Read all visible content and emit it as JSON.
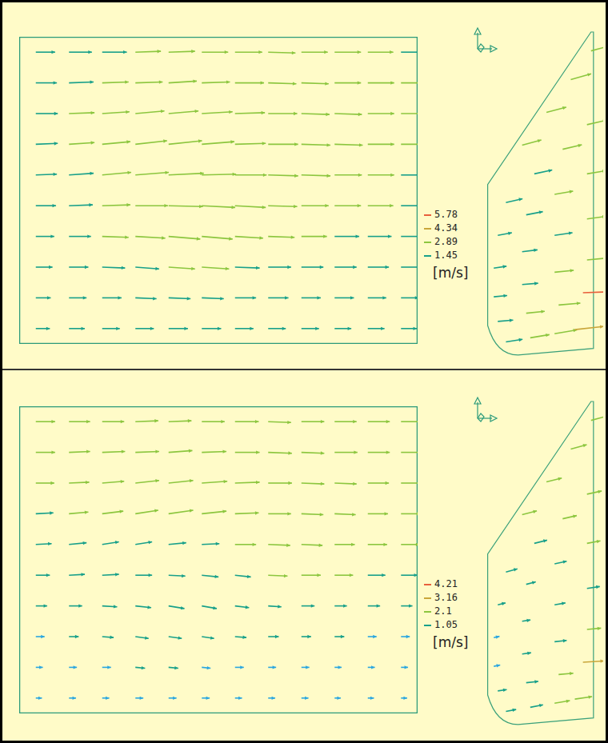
{
  "chart_data": [
    {
      "type": "quiver",
      "tick_labels": false,
      "grid": false,
      "xlim": [
        0,
        12
      ],
      "ylim": [
        0,
        10
      ],
      "grid_x": [
        0.5,
        1.5,
        2.5,
        3.5,
        4.5,
        5.5,
        6.5,
        7.5,
        8.5,
        9.5,
        10.5,
        11.5
      ],
      "grid_y": [
        9.5,
        8.5,
        7.5,
        6.5,
        5.5,
        4.5,
        3.5,
        2.5,
        1.5,
        0.5
      ],
      "u": [
        [
          2.2,
          2.6,
          2.8,
          2.9,
          3.0,
          3.0,
          3.1,
          3.1,
          3.0,
          3.0,
          2.9,
          2.8
        ],
        [
          2.4,
          2.8,
          3.0,
          3.1,
          3.2,
          3.2,
          3.3,
          3.2,
          3.1,
          3.0,
          3.0,
          2.9
        ],
        [
          2.5,
          2.9,
          3.1,
          3.3,
          3.4,
          3.5,
          3.4,
          3.3,
          3.2,
          3.1,
          3.0,
          2.9
        ],
        [
          2.5,
          2.9,
          3.2,
          3.6,
          3.8,
          3.7,
          3.5,
          3.4,
          3.3,
          3.2,
          3.0,
          2.9
        ],
        [
          2.4,
          2.8,
          3.3,
          3.8,
          4.0,
          3.9,
          3.6,
          3.4,
          3.3,
          3.1,
          3.0,
          2.8
        ],
        [
          2.3,
          2.7,
          3.2,
          3.7,
          3.9,
          3.8,
          3.5,
          3.3,
          3.1,
          3.0,
          2.9,
          2.7
        ],
        [
          2.1,
          2.5,
          3.0,
          3.4,
          3.6,
          3.5,
          3.2,
          3.0,
          2.9,
          2.8,
          2.7,
          2.6
        ],
        [
          1.9,
          2.2,
          2.6,
          2.7,
          3.0,
          3.1,
          2.8,
          2.6,
          2.5,
          2.5,
          2.4,
          2.3
        ],
        [
          1.7,
          2.0,
          2.2,
          2.4,
          2.5,
          2.5,
          2.4,
          2.3,
          2.2,
          2.2,
          2.1,
          2.0
        ],
        [
          1.6,
          1.8,
          2.0,
          2.1,
          2.2,
          2.2,
          2.1,
          2.0,
          2.0,
          1.9,
          1.9,
          1.8
        ]
      ],
      "v": [
        [
          0,
          0,
          0,
          0.1,
          0.1,
          0,
          0,
          -0.1,
          0,
          0,
          0,
          0
        ],
        [
          0,
          0.1,
          0.1,
          0.1,
          0.2,
          0.1,
          0,
          -0.1,
          -0.1,
          0,
          0,
          0
        ],
        [
          0,
          0.1,
          0.2,
          0.3,
          0.3,
          0.2,
          0.1,
          0,
          -0.1,
          -0.1,
          0,
          0
        ],
        [
          0.1,
          0.2,
          0.3,
          0.4,
          0.4,
          0.3,
          0.1,
          0,
          -0.1,
          -0.1,
          0,
          0
        ],
        [
          0.1,
          0.2,
          0.3,
          0.3,
          0.2,
          0.1,
          0,
          -0.1,
          -0.1,
          0,
          0,
          0
        ],
        [
          0,
          0.1,
          0.1,
          0,
          -0.1,
          -0.2,
          -0.2,
          -0.1,
          0,
          0,
          0,
          0
        ],
        [
          0,
          0,
          -0.1,
          -0.2,
          -0.3,
          -0.3,
          -0.2,
          -0.1,
          0,
          0,
          0,
          0
        ],
        [
          0,
          0,
          -0.1,
          -0.2,
          -0.2,
          -0.2,
          -0.1,
          0,
          0,
          0,
          0,
          0
        ],
        [
          0,
          0,
          0,
          -0.1,
          -0.1,
          -0.1,
          0,
          0,
          0,
          0,
          0,
          0
        ],
        [
          0,
          0,
          0,
          0,
          0,
          0,
          0,
          0,
          0,
          0,
          0,
          0
        ]
      ],
      "side_view": {
        "xlim": [
          0,
          3
        ],
        "ylim": [
          0,
          8
        ],
        "x": [
          1.0,
          1.6,
          2.2,
          2.7,
          0.6,
          1.3,
          2.0,
          2.6,
          0.4,
          1.1,
          1.8,
          2.6,
          0.3,
          1.0,
          1.8,
          2.6,
          0.3,
          1.0,
          1.8,
          2.6,
          0.4,
          1.1,
          1.9,
          2.5,
          0.6,
          1.2,
          1.8,
          2.3
        ],
        "y": [
          5.2,
          6.0,
          6.8,
          7.5,
          3.8,
          4.5,
          5.1,
          5.7,
          3.0,
          3.5,
          4.0,
          4.5,
          2.2,
          2.6,
          3.0,
          3.4,
          1.5,
          1.8,
          2.1,
          2.4,
          0.9,
          1.1,
          1.3,
          1.6,
          0.4,
          0.5,
          0.6,
          0.7
        ],
        "u": [
          3.0,
          3.1,
          3.2,
          3.3,
          2.6,
          2.8,
          3.0,
          3.1,
          2.2,
          2.6,
          2.9,
          3.0,
          2.0,
          2.4,
          2.8,
          3.0,
          2.1,
          2.5,
          3.0,
          3.2,
          2.4,
          2.9,
          3.4,
          5.9,
          2.6,
          3.0,
          3.5,
          4.5
        ],
        "v": [
          0.8,
          0.8,
          0.9,
          0.9,
          0.6,
          0.6,
          0.7,
          0.7,
          0.4,
          0.5,
          0.5,
          0.5,
          0.3,
          0.3,
          0.4,
          0.4,
          0.2,
          0.2,
          0.3,
          0.3,
          0.2,
          0.3,
          0.3,
          0.2,
          0.4,
          0.5,
          0.6,
          0.5
        ]
      },
      "colorbar": {
        "ticks": [
          1.45,
          2.89,
          4.34,
          5.78
        ],
        "label": "[m/s]",
        "colors": [
          "#2aa6e0",
          "#18a08a",
          "#8cc63f",
          "#c9a63a",
          "#e8603c"
        ]
      }
    },
    {
      "type": "quiver",
      "tick_labels": false,
      "grid": false,
      "xlim": [
        0,
        12
      ],
      "ylim": [
        0,
        10
      ],
      "grid_x": [
        0.5,
        1.5,
        2.5,
        3.5,
        4.5,
        5.5,
        6.5,
        7.5,
        8.5,
        9.5,
        10.5,
        11.5
      ],
      "grid_y": [
        9.5,
        8.5,
        7.5,
        6.5,
        5.5,
        4.5,
        3.5,
        2.5,
        1.5,
        0.5
      ],
      "u": [
        [
          2.2,
          2.4,
          2.5,
          2.6,
          2.6,
          2.6,
          2.7,
          2.6,
          2.6,
          2.5,
          2.5,
          2.4
        ],
        [
          2.2,
          2.4,
          2.6,
          2.7,
          2.7,
          2.8,
          2.8,
          2.7,
          2.6,
          2.6,
          2.5,
          2.4
        ],
        [
          2.1,
          2.3,
          2.5,
          2.7,
          2.8,
          2.9,
          2.8,
          2.7,
          2.6,
          2.5,
          2.4,
          2.3
        ],
        [
          2.0,
          2.2,
          2.4,
          2.6,
          2.8,
          2.8,
          2.7,
          2.6,
          2.5,
          2.4,
          2.3,
          2.2
        ],
        [
          1.8,
          2.0,
          1.9,
          1.9,
          2.0,
          2.0,
          2.4,
          2.5,
          2.4,
          2.3,
          2.2,
          2.1
        ],
        [
          1.6,
          1.8,
          1.9,
          1.9,
          1.9,
          1.9,
          1.8,
          2.2,
          2.2,
          2.1,
          2.0,
          1.9
        ],
        [
          1.3,
          1.5,
          1.7,
          1.8,
          1.8,
          1.7,
          1.6,
          1.5,
          1.5,
          1.4,
          1.4,
          1.3
        ],
        [
          1.0,
          1.1,
          1.3,
          1.5,
          1.5,
          1.4,
          1.3,
          1.2,
          1.1,
          1.1,
          1.0,
          1.0
        ],
        [
          0.8,
          0.9,
          1.0,
          1.1,
          1.1,
          1.0,
          1.0,
          0.9,
          0.9,
          0.8,
          0.8,
          0.8
        ],
        [
          0.7,
          0.8,
          0.8,
          0.9,
          0.9,
          0.9,
          0.8,
          0.8,
          0.8,
          0.7,
          0.7,
          0.7
        ]
      ],
      "v": [
        [
          0,
          0,
          0,
          0.1,
          0.1,
          0,
          0,
          -0.1,
          0,
          0,
          0,
          0
        ],
        [
          0,
          0.1,
          0.1,
          0.1,
          0.2,
          0.1,
          0,
          -0.1,
          -0.1,
          0,
          0,
          0
        ],
        [
          0,
          0.1,
          0.2,
          0.3,
          0.3,
          0.2,
          0.1,
          0,
          -0.1,
          -0.1,
          0,
          0
        ],
        [
          0.1,
          0.2,
          0.3,
          0.4,
          0.4,
          0.3,
          0.1,
          0,
          -0.1,
          -0.1,
          0,
          0
        ],
        [
          0.1,
          0.2,
          0.3,
          0.3,
          0.2,
          0.1,
          0,
          -0.1,
          -0.1,
          0,
          0,
          0
        ],
        [
          0,
          0.1,
          0.1,
          0,
          -0.1,
          -0.2,
          -0.2,
          -0.1,
          0,
          0,
          0,
          0
        ],
        [
          0,
          0,
          -0.1,
          -0.2,
          -0.3,
          -0.3,
          -0.2,
          -0.1,
          0,
          0,
          0,
          0
        ],
        [
          0,
          0,
          -0.1,
          -0.2,
          -0.2,
          -0.2,
          -0.1,
          0,
          0,
          0,
          0,
          0
        ],
        [
          0,
          0,
          0,
          -0.1,
          -0.1,
          -0.1,
          0,
          0,
          0,
          0,
          0,
          0
        ],
        [
          0,
          0,
          0,
          0,
          0,
          0,
          0,
          0,
          0,
          0,
          0,
          0
        ]
      ],
      "side_view": {
        "xlim": [
          0,
          3
        ],
        "ylim": [
          0,
          8
        ],
        "x": [
          1.0,
          1.6,
          2.2,
          2.7,
          0.6,
          1.3,
          2.0,
          2.6,
          0.4,
          1.1,
          1.8,
          2.6,
          0.3,
          1.0,
          1.8,
          2.6,
          0.3,
          1.0,
          1.8,
          2.6,
          0.4,
          1.1,
          1.9,
          2.5,
          0.6,
          1.2,
          1.8,
          2.3
        ],
        "y": [
          5.2,
          6.0,
          6.8,
          7.5,
          3.8,
          4.5,
          5.1,
          5.7,
          3.0,
          3.5,
          4.0,
          4.5,
          2.2,
          2.6,
          3.0,
          3.4,
          1.5,
          1.8,
          2.1,
          2.4,
          0.9,
          1.1,
          1.3,
          1.6,
          0.4,
          0.5,
          0.6,
          0.7
        ],
        "u": [
          2.3,
          2.4,
          2.5,
          2.6,
          1.8,
          2.0,
          2.2,
          2.3,
          1.2,
          1.5,
          1.9,
          2.1,
          0.9,
          1.3,
          1.7,
          2.0,
          1.0,
          1.4,
          1.9,
          2.2,
          1.4,
          1.9,
          2.3,
          3.3,
          1.6,
          2.0,
          2.4,
          2.7
        ],
        "v": [
          0.6,
          0.6,
          0.7,
          0.7,
          0.5,
          0.5,
          0.5,
          0.5,
          0.3,
          0.4,
          0.4,
          0.4,
          0.2,
          0.2,
          0.3,
          0.3,
          0.2,
          0.2,
          0.2,
          0.2,
          0.2,
          0.2,
          0.2,
          0.2,
          0.3,
          0.4,
          0.4,
          0.4
        ]
      },
      "colorbar": {
        "ticks": [
          1.05,
          2.1,
          3.16,
          4.21
        ],
        "label": "[m/s]",
        "colors": [
          "#2aa6e0",
          "#18a08a",
          "#8cc63f",
          "#c9a63a",
          "#e8603c"
        ]
      }
    }
  ]
}
